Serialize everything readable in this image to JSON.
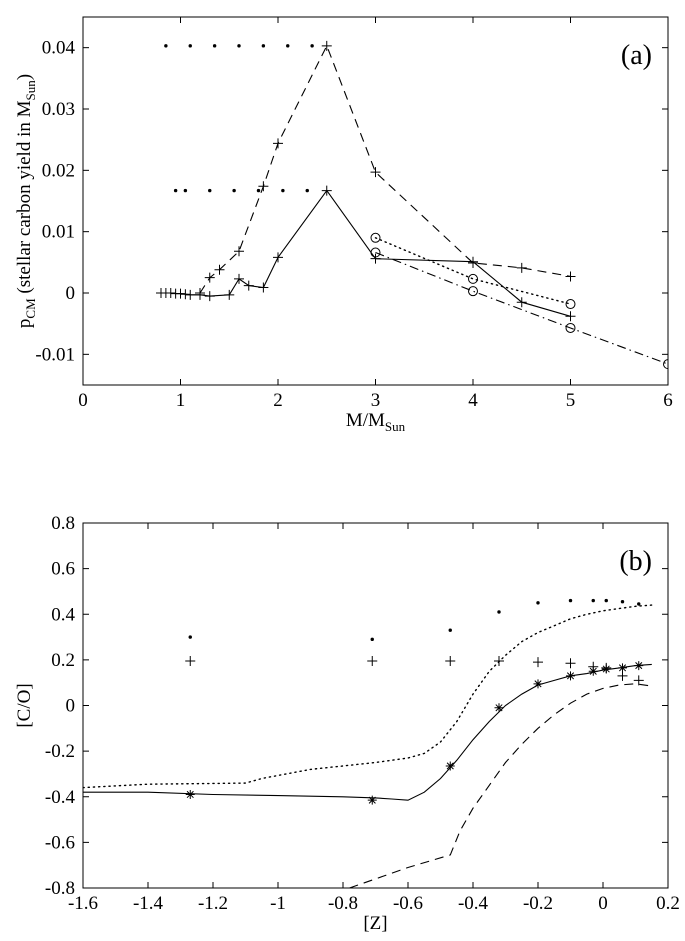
{
  "chart_data": [
    {
      "type": "line",
      "panel_label": "(a)",
      "xlabel": "M/M",
      "xlabel_sub": "Sun",
      "ylabel": "p",
      "ylabel_sub": "CM",
      "ylabel_rest": " (stellar carbon yield in M",
      "ylabel_rest_sub": "Sun",
      "ylabel_close": ")",
      "xlim": [
        0,
        6
      ],
      "ylim": [
        -0.015,
        0.045
      ],
      "xticks": [
        0,
        1,
        2,
        3,
        4,
        5,
        6
      ],
      "xticklabels": [
        "0",
        "1",
        "2",
        "3",
        "4",
        "5",
        "6"
      ],
      "yticks": [
        -0.01,
        0,
        0.01,
        0.02,
        0.03,
        0.04
      ],
      "yticklabels": [
        "-0.01",
        "0",
        "0.01",
        "0.02",
        "0.03",
        "0.04"
      ],
      "series": [
        {
          "name": "solid",
          "style": "solid",
          "marker": "plus",
          "points": [
            [
              0.8,
              0
            ],
            [
              0.85,
              0
            ],
            [
              0.9,
              0
            ],
            [
              0.95,
              -0.0001
            ],
            [
              1.0,
              -0.0001
            ],
            [
              1.05,
              -0.0002
            ],
            [
              1.1,
              -0.0003
            ],
            [
              1.2,
              -0.0003
            ],
            [
              1.3,
              -0.0005
            ],
            [
              1.5,
              -0.0003
            ],
            [
              1.6,
              0.0023
            ],
            [
              1.7,
              0.0012
            ],
            [
              1.85,
              0.0009
            ],
            [
              2.0,
              0.0058
            ],
            [
              2.5,
              0.0167
            ],
            [
              3.0,
              0.0056
            ],
            [
              4.0,
              0.0051
            ],
            [
              4.5,
              -0.0015
            ],
            [
              5.0,
              -0.0038
            ]
          ]
        },
        {
          "name": "dashed",
          "style": "dashed",
          "marker": "plus",
          "points": [
            [
              1.2,
              0
            ],
            [
              1.3,
              0.0025
            ],
            [
              1.4,
              0.0038
            ],
            [
              1.6,
              0.0068
            ],
            [
              1.85,
              0.0174
            ],
            [
              2.0,
              0.0244
            ],
            [
              2.5,
              0.0403
            ],
            [
              3.0,
              0.0197
            ],
            [
              4.0,
              0.0049
            ],
            [
              4.5,
              0.0041
            ],
            [
              5.0,
              0.0027
            ]
          ]
        },
        {
          "name": "dotted",
          "style": "dotted",
          "marker": "circle",
          "points": [
            [
              3.0,
              0.009
            ],
            [
              4.0,
              0.0023
            ],
            [
              5.0,
              -0.0018
            ]
          ]
        },
        {
          "name": "dashdot",
          "style": "dashdot",
          "marker": "circle",
          "points": [
            [
              3.0,
              0.0066
            ],
            [
              4.0,
              0.0003
            ],
            [
              5.0,
              -0.0057
            ],
            [
              6.0,
              -0.0116
            ]
          ]
        },
        {
          "name": "dots-upper",
          "style": "none",
          "marker": "dot",
          "points": [
            [
              0.85,
              0.0403
            ],
            [
              1.1,
              0.0403
            ],
            [
              1.35,
              0.0403
            ],
            [
              1.6,
              0.0403
            ],
            [
              1.85,
              0.0403
            ],
            [
              2.1,
              0.0403
            ],
            [
              2.35,
              0.0403
            ]
          ]
        },
        {
          "name": "dots-lower",
          "style": "none",
          "marker": "dot",
          "points": [
            [
              0.95,
              0.0167
            ],
            [
              1.05,
              0.0167
            ],
            [
              1.3,
              0.0167
            ],
            [
              1.55,
              0.0167
            ],
            [
              1.8,
              0.0167
            ],
            [
              2.05,
              0.0167
            ],
            [
              2.3,
              0.0167
            ]
          ]
        }
      ]
    },
    {
      "type": "line",
      "panel_label": "(b)",
      "xlabel": "[Z]",
      "ylabel": "[C/O]",
      "xlim": [
        -1.6,
        0.2
      ],
      "ylim": [
        -0.8,
        0.8
      ],
      "xticks": [
        -1.6,
        -1.4,
        -1.2,
        -1,
        -0.8,
        -0.6,
        -0.4,
        -0.2,
        0,
        0.2
      ],
      "xticklabels": [
        "-1.6",
        "-1.4",
        "-1.2",
        "-1",
        "-0.8",
        "-0.6",
        "-0.4",
        "-0.2",
        "0",
        "0.2"
      ],
      "yticks": [
        -0.8,
        -0.6,
        -0.4,
        -0.2,
        0,
        0.2,
        0.4,
        0.6,
        0.8
      ],
      "yticklabels": [
        "-0.8",
        "-0.6",
        "-0.4",
        "-0.2",
        "0",
        "0.2",
        "0.4",
        "0.6",
        "0.8"
      ],
      "series": [
        {
          "name": "solid-curve",
          "style": "solid",
          "marker": "none",
          "points": [
            [
              -1.6,
              -0.38
            ],
            [
              -1.4,
              -0.38
            ],
            [
              -1.2,
              -0.39
            ],
            [
              -1.0,
              -0.395
            ],
            [
              -0.8,
              -0.4
            ],
            [
              -0.7,
              -0.405
            ],
            [
              -0.65,
              -0.41
            ],
            [
              -0.6,
              -0.415
            ],
            [
              -0.55,
              -0.38
            ],
            [
              -0.5,
              -0.32
            ],
            [
              -0.45,
              -0.24
            ],
            [
              -0.4,
              -0.15
            ],
            [
              -0.35,
              -0.07
            ],
            [
              -0.3,
              0.0
            ],
            [
              -0.25,
              0.05
            ],
            [
              -0.2,
              0.09
            ],
            [
              -0.15,
              0.11
            ],
            [
              -0.1,
              0.13
            ],
            [
              -0.05,
              0.14
            ],
            [
              0.0,
              0.155
            ],
            [
              0.05,
              0.165
            ],
            [
              0.1,
              0.175
            ],
            [
              0.15,
              0.18
            ]
          ]
        },
        {
          "name": "dotted-curve",
          "style": "dotted",
          "marker": "none",
          "points": [
            [
              -1.6,
              -0.36
            ],
            [
              -1.4,
              -0.345
            ],
            [
              -1.1,
              -0.34
            ],
            [
              -1.05,
              -0.32
            ],
            [
              -0.9,
              -0.28
            ],
            [
              -0.7,
              -0.25
            ],
            [
              -0.6,
              -0.23
            ],
            [
              -0.55,
              -0.21
            ],
            [
              -0.5,
              -0.16
            ],
            [
              -0.45,
              -0.07
            ],
            [
              -0.4,
              0.05
            ],
            [
              -0.35,
              0.15
            ],
            [
              -0.3,
              0.22
            ],
            [
              -0.25,
              0.28
            ],
            [
              -0.2,
              0.32
            ],
            [
              -0.15,
              0.35
            ],
            [
              -0.1,
              0.38
            ],
            [
              -0.05,
              0.4
            ],
            [
              0.0,
              0.415
            ],
            [
              0.05,
              0.425
            ],
            [
              0.1,
              0.435
            ],
            [
              0.15,
              0.44
            ]
          ]
        },
        {
          "name": "dashed-curve",
          "style": "dashed",
          "marker": "none",
          "points": [
            [
              -0.78,
              -0.8
            ],
            [
              -0.7,
              -0.76
            ],
            [
              -0.6,
              -0.71
            ],
            [
              -0.47,
              -0.655
            ],
            [
              -0.44,
              -0.55
            ],
            [
              -0.4,
              -0.45
            ],
            [
              -0.35,
              -0.35
            ],
            [
              -0.3,
              -0.25
            ],
            [
              -0.25,
              -0.17
            ],
            [
              -0.2,
              -0.1
            ],
            [
              -0.15,
              -0.04
            ],
            [
              -0.1,
              0.01
            ],
            [
              -0.05,
              0.05
            ],
            [
              0.0,
              0.075
            ],
            [
              0.05,
              0.09
            ],
            [
              0.1,
              0.095
            ],
            [
              0.15,
              0.085
            ]
          ]
        },
        {
          "name": "dots",
          "style": "none",
          "marker": "dot",
          "points": [
            [
              -1.27,
              0.3
            ],
            [
              -0.71,
              0.29
            ],
            [
              -0.47,
              0.33
            ],
            [
              -0.32,
              0.41
            ],
            [
              -0.2,
              0.45
            ],
            [
              -0.1,
              0.46
            ],
            [
              -0.03,
              0.46
            ],
            [
              0.01,
              0.46
            ],
            [
              0.06,
              0.455
            ],
            [
              0.11,
              0.445
            ]
          ]
        },
        {
          "name": "plus-markers",
          "style": "none",
          "marker": "plus",
          "points": [
            [
              -1.27,
              0.195
            ],
            [
              -0.71,
              0.195
            ],
            [
              -0.47,
              0.195
            ],
            [
              -0.32,
              0.195
            ],
            [
              -0.2,
              0.19
            ],
            [
              -0.1,
              0.185
            ],
            [
              -0.03,
              0.17
            ],
            [
              0.01,
              0.165
            ],
            [
              0.06,
              0.13
            ],
            [
              0.11,
              0.11
            ]
          ]
        },
        {
          "name": "asterisk-markers",
          "style": "none",
          "marker": "asterisk",
          "points": [
            [
              -1.27,
              -0.39
            ],
            [
              -0.71,
              -0.415
            ],
            [
              -0.47,
              -0.265
            ],
            [
              -0.32,
              -0.01
            ],
            [
              -0.2,
              0.095
            ],
            [
              -0.1,
              0.13
            ],
            [
              -0.03,
              0.15
            ],
            [
              0.01,
              0.16
            ],
            [
              0.06,
              0.165
            ],
            [
              0.11,
              0.175
            ]
          ]
        }
      ]
    }
  ]
}
